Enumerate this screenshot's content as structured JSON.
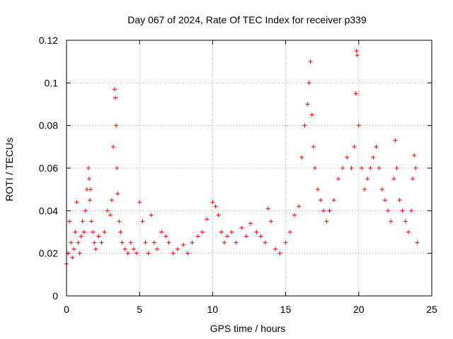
{
  "chart_data": {
    "type": "scatter",
    "title": "Day 067 of 2024, Rate Of TEC Index for receiver p339",
    "xlabel": "GPS time / hours",
    "ylabel": "ROTI / TECUs",
    "xlim": [
      0,
      25
    ],
    "ylim": [
      0,
      0.12
    ],
    "xticks": [
      0,
      5,
      10,
      15,
      20,
      25
    ],
    "xtick_labels": [
      "0",
      "5",
      "10",
      "15",
      "20",
      "25"
    ],
    "yticks": [
      0,
      0.02,
      0.04,
      0.06,
      0.08,
      0.1,
      0.12
    ],
    "ytick_labels": [
      "0",
      "0.02",
      "0.04",
      "0.06",
      "0.08",
      "0.1",
      "0.12"
    ],
    "grid": true,
    "marker": "plus",
    "series_color": "#ff0000",
    "series": [
      {
        "name": "ROTI",
        "x": [
          0.0,
          0.1,
          0.2,
          0.3,
          0.4,
          0.5,
          0.6,
          0.7,
          0.8,
          0.9,
          1.0,
          1.1,
          1.2,
          1.3,
          1.4,
          1.5,
          1.55,
          1.6,
          1.65,
          1.7,
          1.8,
          1.9,
          2.0,
          2.2,
          2.4,
          2.6,
          2.8,
          3.0,
          3.1,
          3.2,
          3.3,
          3.35,
          3.4,
          3.45,
          3.5,
          3.6,
          3.7,
          3.8,
          4.0,
          4.2,
          4.4,
          4.6,
          4.8,
          5.0,
          5.2,
          5.4,
          5.6,
          5.8,
          6.0,
          6.2,
          6.5,
          6.8,
          7.0,
          7.3,
          7.6,
          8.0,
          8.3,
          8.6,
          9.0,
          9.3,
          9.6,
          10.0,
          10.2,
          10.4,
          10.6,
          10.8,
          11.0,
          11.3,
          11.6,
          12.0,
          12.3,
          12.6,
          13.0,
          13.3,
          13.6,
          13.8,
          14.0,
          14.3,
          14.6,
          15.0,
          15.3,
          15.6,
          15.9,
          16.1,
          16.3,
          16.5,
          16.6,
          16.7,
          16.8,
          16.9,
          17.0,
          17.2,
          17.4,
          17.6,
          17.8,
          18.0,
          18.3,
          18.6,
          18.9,
          19.2,
          19.5,
          19.7,
          19.8,
          19.85,
          19.9,
          20.0,
          20.2,
          20.4,
          20.6,
          20.8,
          21.0,
          21.2,
          21.4,
          21.6,
          21.8,
          22.0,
          22.2,
          22.4,
          22.5,
          22.6,
          22.8,
          23.0,
          23.2,
          23.4,
          23.6,
          23.7,
          23.8,
          23.9,
          24.0
        ],
        "y": [
          0.015,
          0.02,
          0.035,
          0.025,
          0.018,
          0.022,
          0.03,
          0.044,
          0.025,
          0.02,
          0.028,
          0.035,
          0.03,
          0.04,
          0.05,
          0.06,
          0.055,
          0.045,
          0.05,
          0.035,
          0.03,
          0.025,
          0.022,
          0.028,
          0.025,
          0.03,
          0.04,
          0.038,
          0.045,
          0.07,
          0.097,
          0.093,
          0.08,
          0.06,
          0.048,
          0.035,
          0.03,
          0.025,
          0.022,
          0.02,
          0.025,
          0.022,
          0.02,
          0.044,
          0.035,
          0.025,
          0.02,
          0.038,
          0.025,
          0.022,
          0.03,
          0.028,
          0.025,
          0.02,
          0.022,
          0.024,
          0.02,
          0.025,
          0.028,
          0.03,
          0.036,
          0.044,
          0.042,
          0.038,
          0.03,
          0.025,
          0.028,
          0.03,
          0.025,
          0.032,
          0.028,
          0.034,
          0.03,
          0.028,
          0.025,
          0.041,
          0.035,
          0.022,
          0.02,
          0.025,
          0.03,
          0.038,
          0.042,
          0.065,
          0.08,
          0.09,
          0.1,
          0.11,
          0.085,
          0.07,
          0.06,
          0.05,
          0.045,
          0.04,
          0.035,
          0.04,
          0.045,
          0.055,
          0.06,
          0.065,
          0.06,
          0.07,
          0.095,
          0.115,
          0.113,
          0.08,
          0.06,
          0.05,
          0.055,
          0.06,
          0.065,
          0.07,
          0.06,
          0.05,
          0.045,
          0.04,
          0.035,
          0.055,
          0.073,
          0.06,
          0.045,
          0.04,
          0.035,
          0.03,
          0.04,
          0.055,
          0.066,
          0.06,
          0.025
        ]
      }
    ]
  }
}
